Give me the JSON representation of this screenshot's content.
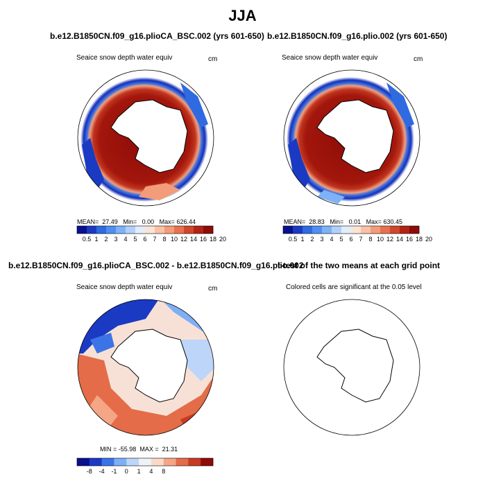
{
  "main_title": "JJA",
  "panels": [
    {
      "title": "b.e12.B1850CN.f09_g16.plioCA_BSC.002 (yrs 601-650)",
      "subtitle": "Seaice snow depth water equiv",
      "units": "cm",
      "stats": {
        "mean_label": "MEAN=",
        "mean": "27.49",
        "min_label": "Min=",
        "min": "0.00",
        "max_label": "Max=",
        "max": "626.44"
      }
    },
    {
      "title": "b.e12.B1850CN.f09_g16.plio.002 (yrs 601-650)",
      "subtitle": "Seaice snow depth water equiv",
      "units": "cm",
      "stats": {
        "mean_label": "MEAN=",
        "mean": "28.83",
        "min_label": "Min=",
        "min": "0.01",
        "max_label": "Max=",
        "max": "630.45"
      }
    },
    {
      "title": "b.e12.B1850CN.f09_g16.plioCA_BSC.002 - b.e12.B1850CN.f09_g16.plio.002",
      "subtitle": "Seaice snow depth water equiv",
      "units": "cm",
      "stats": {
        "min_label": "MIN =",
        "min": "-55.98",
        "max_label": "MAX =",
        "max": "21.31"
      }
    },
    {
      "title": "t-test of the two means at each grid point",
      "subtitle": "Colored cells are significant at the 0.05 level"
    }
  ],
  "colors": {
    "seq": [
      "#08108c",
      "#1a3ac4",
      "#2f6ae0",
      "#4f8ff0",
      "#7eb2f7",
      "#b0d0fa",
      "#e3edf9",
      "#f9e4d8",
      "#f9c1a5",
      "#f29c79",
      "#e6724e",
      "#d1472c",
      "#b22314",
      "#8e0c08"
    ],
    "div": [
      "#08108c",
      "#1a3ac4",
      "#3c74e6",
      "#7eaff6",
      "#bcd5f9",
      "#eef2f6",
      "#fbd9c8",
      "#f4a686",
      "#e46c48",
      "#c83b22",
      "#8e0c08"
    ]
  },
  "colorbar_top": {
    "labels": [
      "0.5",
      "1",
      "2",
      "3",
      "4",
      "5",
      "6",
      "7",
      "8",
      "10",
      "12",
      "14",
      "16",
      "18",
      "20"
    ]
  },
  "colorbar_diff": {
    "labels": [
      "-8",
      "-4",
      "-1",
      "0",
      "1",
      "4",
      "8"
    ]
  }
}
